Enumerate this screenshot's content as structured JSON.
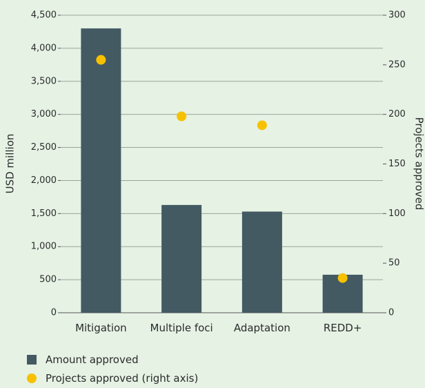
{
  "chart_data": {
    "type": "bar",
    "categories": [
      "Mitigation",
      "Multiple foci",
      "Adaptation",
      "REDD+"
    ],
    "series": [
      {
        "name": "Amount approved",
        "type": "bar",
        "color": "#435a63",
        "values": [
          4300,
          1630,
          1530,
          575
        ]
      },
      {
        "name": "Projects approved (right axis)",
        "type": "scatter",
        "axis": "y2",
        "color": "#f7c100",
        "values": [
          255,
          198,
          189,
          35
        ]
      }
    ],
    "y_label": "USD million",
    "y2_label": "Projects approved",
    "ylim": [
      0,
      4500
    ],
    "yticks": [
      0,
      500,
      {
        "value": 1000,
        "label": "1,000"
      },
      {
        "value": 1500,
        "label": "1,500"
      },
      {
        "value": 2000,
        "label": "2,000"
      },
      {
        "value": 2500,
        "label": "2,500"
      },
      {
        "value": 3000,
        "label": "3,000"
      },
      {
        "value": 3500,
        "label": "3,500"
      },
      {
        "value": 4000,
        "label": "4,000"
      },
      {
        "value": 4500,
        "label": "4,500"
      }
    ],
    "y2lim": [
      0,
      300
    ],
    "y2ticks": [
      0,
      50,
      100,
      150,
      200,
      250,
      300
    ],
    "grid": true
  }
}
